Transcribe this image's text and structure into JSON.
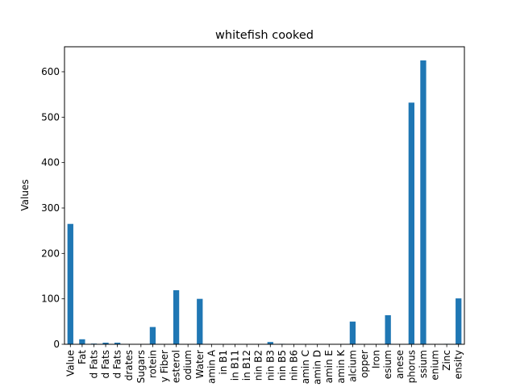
{
  "chart_data": {
    "type": "bar",
    "title": "whitefish cooked",
    "xlabel": "",
    "ylabel": "Values",
    "ylim": [
      0,
      655
    ],
    "yticks": [
      0,
      100,
      200,
      300,
      400,
      500,
      600
    ],
    "grid": false,
    "legend": "none",
    "bar_color": "#1f77b4",
    "tick_labels_visible": [
      "Value",
      "Fat",
      "d Fats",
      "d Fats",
      "d Fats",
      "drates",
      "Sugars",
      "rotein",
      "y Fiber",
      "esterol",
      "odium",
      "Water",
      "amin A",
      "in B1",
      "in B11",
      "in B12",
      "nin B2",
      "nin B3",
      "nin B5",
      "nin B6",
      "amin C",
      "amin D",
      "amin E",
      "amin K",
      "alcium",
      "opper",
      "Iron",
      "esium",
      "anese",
      "phorus",
      "ssium",
      "enium",
      "Zinc",
      "ensity"
    ],
    "values": [
      265,
      11,
      1.5,
      3.5,
      3.5,
      0,
      0,
      38,
      0,
      119,
      0,
      100,
      0,
      0,
      0,
      0,
      0,
      5,
      1,
      0.5,
      0,
      0,
      0,
      0,
      50,
      0,
      0.5,
      64,
      0,
      532,
      625,
      0,
      1,
      101
    ]
  }
}
